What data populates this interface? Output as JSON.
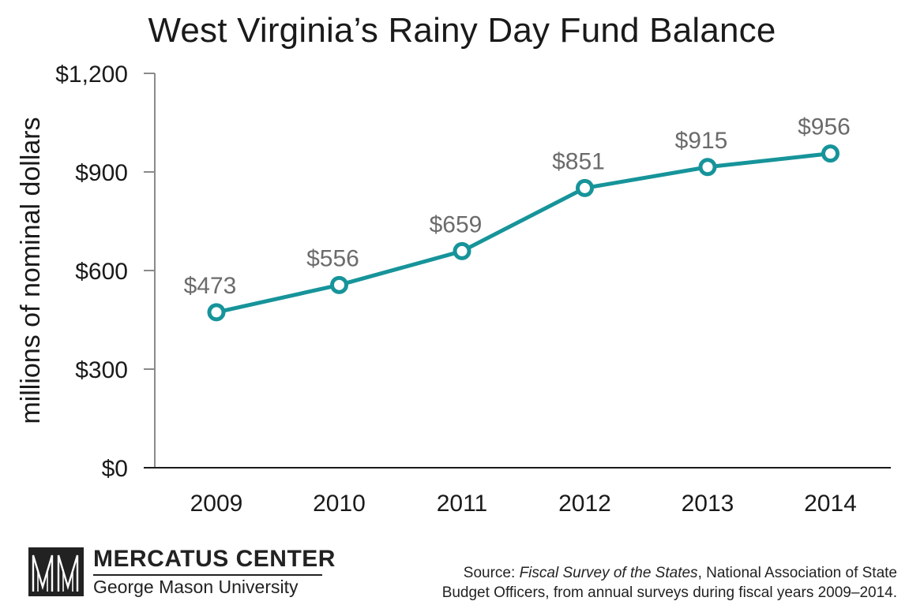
{
  "chart_data": {
    "type": "line",
    "title": "West Virginia’s Rainy Day Fund Balance",
    "ylabel": "millions of nominal dollars",
    "xlabel": "",
    "categories": [
      "2009",
      "2010",
      "2011",
      "2012",
      "2013",
      "2014"
    ],
    "series": [
      {
        "values": [
          473,
          556,
          659,
          851,
          915,
          956
        ]
      }
    ],
    "data_labels": [
      "$473",
      "$556",
      "$659",
      "$851",
      "$915",
      "$956"
    ],
    "ylim": [
      0,
      1200
    ],
    "yticks": [
      0,
      300,
      600,
      900,
      1200
    ],
    "ytick_labels": [
      "$0",
      "$300",
      "$600",
      "$900",
      "$1,200"
    ],
    "grid": false,
    "line_color": "#16949a"
  },
  "footer": {
    "logo": {
      "name": "MERCATUS CENTER",
      "subtitle": "George Mason University"
    },
    "source": {
      "prefix": "Source: ",
      "publication": "Fiscal Survey of the States",
      "rest_line1": ", National Association of State",
      "line2": "Budget Officers, from annual surveys during fiscal years 2009–2014."
    }
  }
}
